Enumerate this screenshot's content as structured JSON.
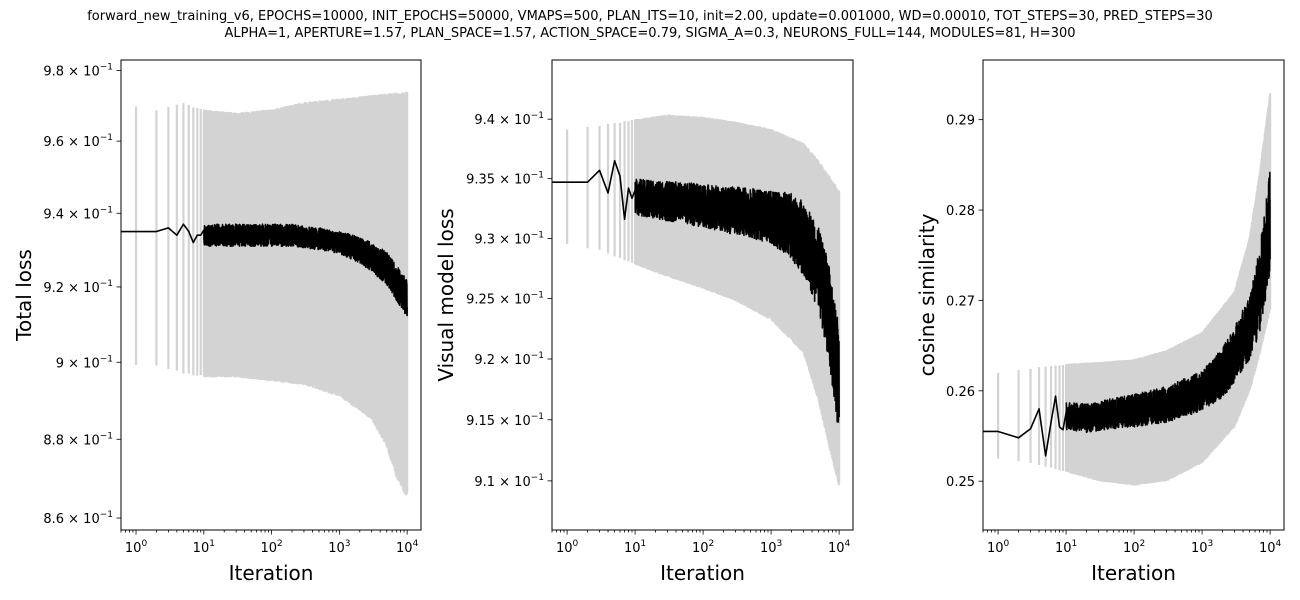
{
  "figure": {
    "title_line1": "forward_new_training_v6, EPOCHS=10000, INIT_EPOCHS=50000, VMAPS=500, PLAN_ITS=10, init=2.00, update=0.001000, WD=0.00010, TOT_STEPS=30, PRED_STEPS=30",
    "title_line2": "ALPHA=1, APERTURE=1.57, PLAN_SPACE=1.57, ACTION_SPACE=0.79, SIGMA_A=0.3, NEURONS_FULL=144, MODULES=81, H=300"
  },
  "colors": {
    "mean_line": "#000000",
    "band": "#d3d3d3"
  },
  "chart_data": [
    {
      "type": "line",
      "xlabel": "Iteration",
      "ylabel": "Total loss",
      "x_scale": "log",
      "y_scale": "log",
      "xlim": [
        0.6,
        16000
      ],
      "ylim": [
        0.857,
        0.983
      ],
      "x_ticks": [
        {
          "v": 1,
          "label": "10^0"
        },
        {
          "v": 10,
          "label": "10^1"
        },
        {
          "v": 100,
          "label": "10^2"
        },
        {
          "v": 1000,
          "label": "10^3"
        },
        {
          "v": 10000,
          "label": "10^4"
        }
      ],
      "y_ticks": [
        {
          "v": 0.86,
          "label": "8.6 × 10^−1"
        },
        {
          "v": 0.88,
          "label": "8.8 × 10^−1"
        },
        {
          "v": 0.9,
          "label": "9 × 10^−1"
        },
        {
          "v": 0.92,
          "label": "9.2 × 10^−1"
        },
        {
          "v": 0.94,
          "label": "9.4 × 10^−1"
        },
        {
          "v": 0.96,
          "label": "9.6 × 10^−1"
        },
        {
          "v": 0.98,
          "label": "9.8 × 10^−1"
        }
      ],
      "mean": [
        [
          0.6,
          0.935
        ],
        [
          1,
          0.935
        ],
        [
          2,
          0.935
        ],
        [
          3,
          0.936
        ],
        [
          4,
          0.934
        ],
        [
          5,
          0.937
        ],
        [
          6,
          0.935
        ],
        [
          7,
          0.932
        ],
        [
          8,
          0.934
        ],
        [
          10,
          0.934
        ],
        [
          15,
          0.934
        ],
        [
          20,
          0.934
        ],
        [
          30,
          0.934
        ],
        [
          50,
          0.934
        ],
        [
          100,
          0.934
        ],
        [
          200,
          0.934
        ],
        [
          500,
          0.933
        ],
        [
          1000,
          0.932
        ],
        [
          2000,
          0.93
        ],
        [
          3000,
          0.928
        ],
        [
          5000,
          0.925
        ],
        [
          7000,
          0.921
        ],
        [
          10000,
          0.917
        ]
      ],
      "mean_noise": [
        [
          0.6,
          0
        ],
        [
          10,
          0.003
        ],
        [
          100,
          0.003
        ],
        [
          1000,
          0.003
        ],
        [
          10000,
          0.005
        ]
      ],
      "band_upper": [
        [
          1,
          0.97
        ],
        [
          2,
          0.969
        ],
        [
          3,
          0.97
        ],
        [
          5,
          0.971
        ],
        [
          10,
          0.969
        ],
        [
          30,
          0.968
        ],
        [
          100,
          0.969
        ],
        [
          300,
          0.971
        ],
        [
          1000,
          0.972
        ],
        [
          3000,
          0.973
        ],
        [
          10000,
          0.974
        ]
      ],
      "band_lower": [
        [
          1,
          0.899
        ],
        [
          2,
          0.899
        ],
        [
          3,
          0.898
        ],
        [
          5,
          0.897
        ],
        [
          10,
          0.896
        ],
        [
          30,
          0.896
        ],
        [
          100,
          0.895
        ],
        [
          300,
          0.894
        ],
        [
          1000,
          0.891
        ],
        [
          3000,
          0.885
        ],
        [
          5000,
          0.878
        ],
        [
          7000,
          0.87
        ],
        [
          10000,
          0.865
        ]
      ]
    },
    {
      "type": "line",
      "xlabel": "Iteration",
      "ylabel": "Visual model loss",
      "x_scale": "log",
      "y_scale": "log",
      "xlim": [
        0.6,
        16000
      ],
      "ylim": [
        0.906,
        0.945
      ],
      "x_ticks": [
        {
          "v": 1,
          "label": "10^0"
        },
        {
          "v": 10,
          "label": "10^1"
        },
        {
          "v": 100,
          "label": "10^2"
        },
        {
          "v": 1000,
          "label": "10^3"
        },
        {
          "v": 10000,
          "label": "10^4"
        }
      ],
      "y_ticks": [
        {
          "v": 0.91,
          "label": "9.1 × 10^−1"
        },
        {
          "v": 0.915,
          "label": "9.15 × 10^−1"
        },
        {
          "v": 0.92,
          "label": "9.2 × 10^−1"
        },
        {
          "v": 0.925,
          "label": "9.25 × 10^−1"
        },
        {
          "v": 0.93,
          "label": "9.3 × 10^−1"
        },
        {
          "v": 0.935,
          "label": "9.35 × 10^−1"
        },
        {
          "v": 0.94,
          "label": "9.4 × 10^−1"
        }
      ],
      "mean": [
        [
          0.6,
          0.9347
        ],
        [
          1,
          0.9347
        ],
        [
          2,
          0.9347
        ],
        [
          3,
          0.9357
        ],
        [
          4,
          0.9338
        ],
        [
          5,
          0.9365
        ],
        [
          6,
          0.9352
        ],
        [
          7,
          0.9316
        ],
        [
          8,
          0.9342
        ],
        [
          10,
          0.9335
        ],
        [
          20,
          0.9332
        ],
        [
          50,
          0.933
        ],
        [
          100,
          0.9327
        ],
        [
          300,
          0.9323
        ],
        [
          1000,
          0.9318
        ],
        [
          2000,
          0.931
        ],
        [
          3000,
          0.93
        ],
        [
          5000,
          0.9275
        ],
        [
          7000,
          0.924
        ],
        [
          10000,
          0.918
        ]
      ],
      "mean_noise": [
        [
          0.6,
          0
        ],
        [
          10,
          0.0015
        ],
        [
          100,
          0.0018
        ],
        [
          1000,
          0.0022
        ],
        [
          5000,
          0.0035
        ],
        [
          10000,
          0.0045
        ]
      ],
      "band_upper": [
        [
          1,
          0.9392
        ],
        [
          3,
          0.9395
        ],
        [
          10,
          0.94
        ],
        [
          30,
          0.9404
        ],
        [
          100,
          0.9402
        ],
        [
          300,
          0.9398
        ],
        [
          1000,
          0.9392
        ],
        [
          3000,
          0.938
        ],
        [
          5000,
          0.9365
        ],
        [
          10000,
          0.934
        ]
      ],
      "band_lower": [
        [
          1,
          0.9295
        ],
        [
          3,
          0.929
        ],
        [
          10,
          0.9278
        ],
        [
          30,
          0.9268
        ],
        [
          100,
          0.9258
        ],
        [
          300,
          0.9248
        ],
        [
          1000,
          0.9232
        ],
        [
          3000,
          0.9205
        ],
        [
          5000,
          0.9165
        ],
        [
          7000,
          0.913
        ],
        [
          10000,
          0.9095
        ]
      ]
    },
    {
      "type": "line",
      "xlabel": "Iteration",
      "ylabel": "cosine similarity",
      "x_scale": "log",
      "y_scale": "linear",
      "xlim": [
        0.6,
        16000
      ],
      "ylim": [
        0.2446,
        0.2966
      ],
      "x_ticks": [
        {
          "v": 1,
          "label": "10^0"
        },
        {
          "v": 10,
          "label": "10^1"
        },
        {
          "v": 100,
          "label": "10^2"
        },
        {
          "v": 1000,
          "label": "10^3"
        },
        {
          "v": 10000,
          "label": "10^4"
        }
      ],
      "y_ticks": [
        {
          "v": 0.25,
          "label": "0.25"
        },
        {
          "v": 0.26,
          "label": "0.26"
        },
        {
          "v": 0.27,
          "label": "0.27"
        },
        {
          "v": 0.28,
          "label": "0.28"
        },
        {
          "v": 0.29,
          "label": "0.29"
        }
      ],
      "mean": [
        [
          0.6,
          0.2555
        ],
        [
          1,
          0.2555
        ],
        [
          2,
          0.2548
        ],
        [
          3,
          0.2558
        ],
        [
          4,
          0.258
        ],
        [
          5,
          0.2528
        ],
        [
          6,
          0.2565
        ],
        [
          7,
          0.2594
        ],
        [
          8,
          0.256
        ],
        [
          10,
          0.2572
        ],
        [
          20,
          0.257
        ],
        [
          50,
          0.2575
        ],
        [
          100,
          0.2578
        ],
        [
          300,
          0.2585
        ],
        [
          1000,
          0.26
        ],
        [
          2000,
          0.262
        ],
        [
          3000,
          0.264
        ],
        [
          5000,
          0.267
        ],
        [
          7000,
          0.271
        ],
        [
          10000,
          0.279
        ]
      ],
      "mean_noise": [
        [
          0.6,
          0
        ],
        [
          10,
          0.0015
        ],
        [
          100,
          0.0018
        ],
        [
          1000,
          0.0022
        ],
        [
          5000,
          0.0035
        ],
        [
          10000,
          0.006
        ]
      ],
      "band_upper": [
        [
          1,
          0.262
        ],
        [
          3,
          0.2625
        ],
        [
          10,
          0.263
        ],
        [
          30,
          0.2632
        ],
        [
          100,
          0.2635
        ],
        [
          300,
          0.2645
        ],
        [
          1000,
          0.2665
        ],
        [
          3000,
          0.271
        ],
        [
          5000,
          0.277
        ],
        [
          7000,
          0.284
        ],
        [
          10000,
          0.293
        ]
      ],
      "band_lower": [
        [
          1,
          0.2525
        ],
        [
          3,
          0.252
        ],
        [
          10,
          0.251
        ],
        [
          30,
          0.25
        ],
        [
          100,
          0.2495
        ],
        [
          300,
          0.25
        ],
        [
          1000,
          0.252
        ],
        [
          3000,
          0.256
        ],
        [
          5000,
          0.26
        ],
        [
          7000,
          0.264
        ],
        [
          10000,
          0.269
        ]
      ]
    }
  ]
}
